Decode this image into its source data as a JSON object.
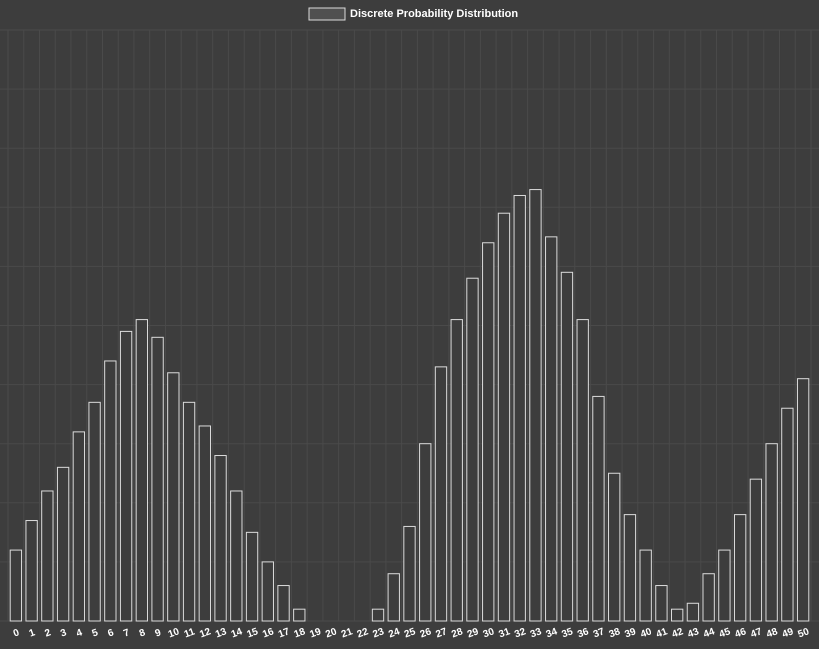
{
  "chart_data": {
    "type": "bar",
    "title": "",
    "xlabel": "",
    "ylabel": "",
    "legend": {
      "position": "top",
      "entries": [
        "Discrete Probability Distribution"
      ]
    },
    "series": [
      {
        "name": "Discrete Probability Distribution",
        "values": [
          0.6,
          0.85,
          1.1,
          1.3,
          1.6,
          1.85,
          2.2,
          2.45,
          2.55,
          2.4,
          2.1,
          1.85,
          1.65,
          1.4,
          1.1,
          0.75,
          0.5,
          0.3,
          0.1,
          0,
          0,
          0,
          0,
          0.1,
          0.4,
          0.8,
          1.5,
          2.15,
          2.55,
          2.9,
          3.2,
          3.45,
          3.6,
          3.65,
          3.25,
          2.95,
          2.55,
          1.9,
          1.25,
          0.9,
          0.6,
          0.3,
          0.1,
          0.15,
          0.4,
          0.6,
          0.9,
          1.2,
          1.5,
          1.8,
          2.05
        ]
      }
    ],
    "categories": [
      "0",
      "1",
      "2",
      "3",
      "4",
      "5",
      "6",
      "7",
      "8",
      "9",
      "10",
      "11",
      "12",
      "13",
      "14",
      "15",
      "16",
      "17",
      "18",
      "19",
      "20",
      "21",
      "22",
      "23",
      "24",
      "25",
      "26",
      "27",
      "28",
      "29",
      "30",
      "31",
      "32",
      "33",
      "34",
      "35",
      "36",
      "37",
      "38",
      "39",
      "40",
      "41",
      "42",
      "43",
      "44",
      "45",
      "46",
      "47",
      "48",
      "49",
      "50"
    ],
    "ylim": [
      0,
      5
    ],
    "grid": true,
    "y_tick_labels_shown": false,
    "colors": {
      "background": "#3d3d3d",
      "grid": "#4a4a4a",
      "bar_fill": "#3d3d3d",
      "bar_stroke": "#dcdcdc",
      "text": "#ffffff"
    }
  }
}
